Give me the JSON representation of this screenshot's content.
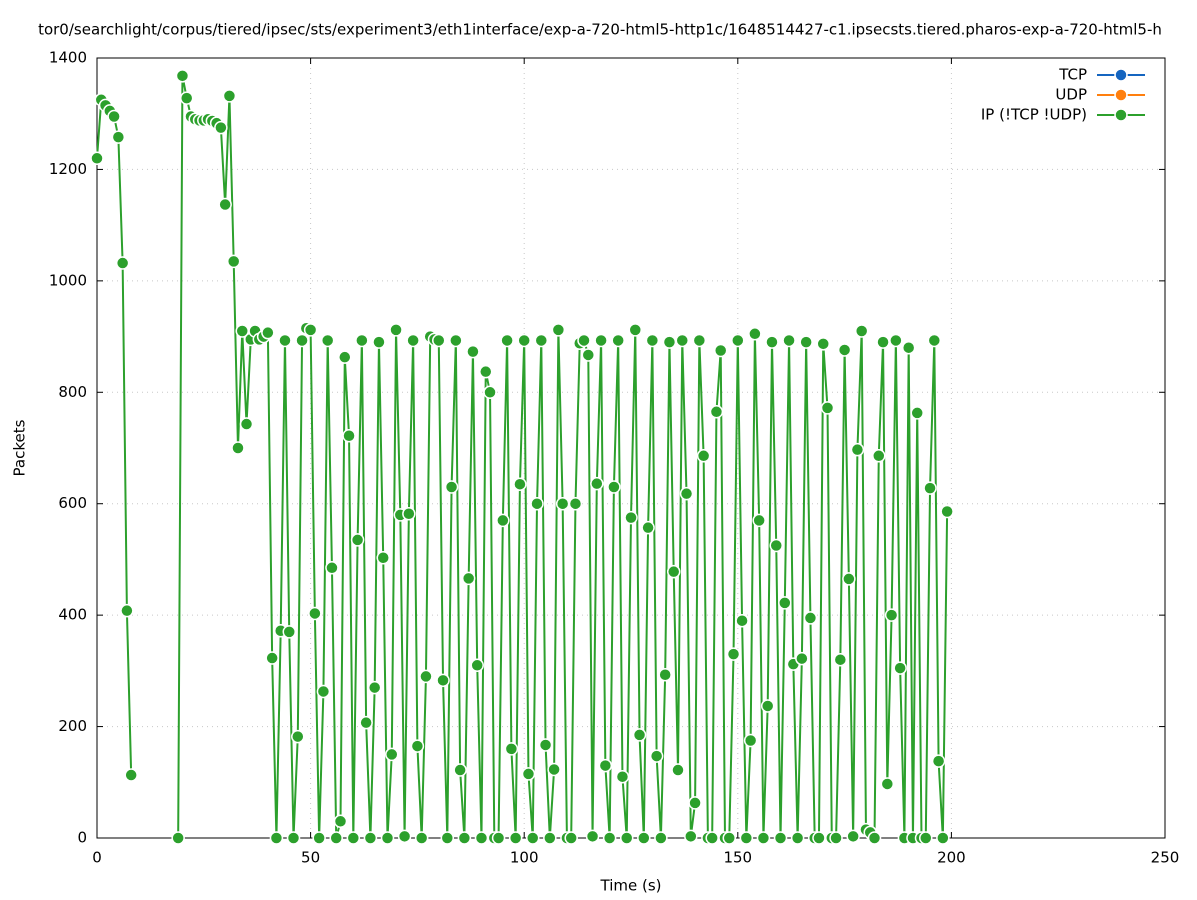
{
  "chart_data": {
    "type": "line",
    "title": "tor0/searchlight/corpus/tiered/ipsec/sts/experiment3/eth1interface/exp-a-720-html5-http1c/1648514427-c1.ipsecsts.tiered.pharos-exp-a-720-html5-h",
    "xlabel": "Time (s)",
    "ylabel": "Packets",
    "xlim": [
      0,
      250
    ],
    "xticks": [
      0,
      50,
      100,
      150,
      200,
      250
    ],
    "ylim": [
      0,
      1400
    ],
    "yticks": [
      0,
      200,
      400,
      600,
      800,
      1000,
      1200,
      1400
    ],
    "grid": true,
    "legend": "upper right",
    "series": [
      {
        "name": "TCP",
        "color": "#1565c0",
        "x": [],
        "values": []
      },
      {
        "name": "UDP",
        "color": "#ff7f0e",
        "x": [],
        "values": []
      },
      {
        "name": "IP (!TCP  !UDP)",
        "color": "#2ca02c",
        "x": [
          0,
          1,
          2,
          3,
          4,
          5,
          6,
          7,
          8,
          9,
          10,
          11,
          12,
          13,
          14,
          15,
          16,
          17,
          18,
          19,
          20,
          21,
          22,
          23,
          24,
          25,
          26,
          27,
          28,
          29,
          30,
          31,
          32,
          33,
          34,
          35,
          36,
          37,
          38,
          39,
          40,
          41,
          42,
          43,
          44,
          45,
          46,
          47,
          48,
          49,
          50,
          51,
          52,
          53,
          54,
          55,
          56,
          57,
          58,
          59,
          60,
          61,
          62,
          63,
          64,
          65,
          66,
          67,
          68,
          69,
          70,
          71,
          72,
          73,
          74,
          75,
          76,
          77,
          78,
          79,
          80,
          81,
          82,
          83,
          84,
          85,
          86,
          87,
          88,
          89,
          90,
          91,
          92,
          93,
          94,
          95,
          96,
          97,
          98,
          99,
          100,
          101,
          102,
          103,
          104,
          105,
          106,
          107,
          108,
          109,
          110,
          111,
          112,
          113,
          114,
          115,
          116,
          117,
          118,
          119,
          120,
          121,
          122,
          123,
          124,
          125,
          126,
          127,
          128,
          129,
          130,
          131,
          132,
          133,
          134,
          135,
          136,
          137,
          138,
          139,
          140,
          141,
          142,
          143,
          144,
          145,
          146,
          147,
          148,
          149,
          150,
          151,
          152,
          153,
          154,
          155,
          156,
          157,
          158,
          159,
          160,
          161,
          162,
          163,
          164,
          165,
          166,
          167,
          168,
          169,
          170,
          171,
          172,
          173,
          174,
          175,
          176,
          177,
          178,
          179,
          180,
          181,
          182,
          183,
          184,
          185,
          186,
          187,
          188,
          189,
          190,
          191,
          192,
          193,
          194,
          195,
          196,
          197,
          198,
          199
        ],
        "values": [
          1220,
          1325,
          1315,
          1305,
          1295,
          1258,
          1032,
          408,
          113,
          null,
          null,
          null,
          null,
          null,
          null,
          null,
          null,
          null,
          null,
          0,
          1368,
          1328,
          1295,
          1290,
          1288,
          1288,
          1290,
          1287,
          1283,
          1275,
          1137,
          1332,
          1035,
          700,
          910,
          743,
          895,
          910,
          895,
          900,
          907,
          323,
          0,
          372,
          893,
          370,
          0,
          182,
          893,
          915,
          912,
          403,
          0,
          263,
          893,
          485,
          0,
          30,
          863,
          722,
          0,
          535,
          893,
          207,
          0,
          270,
          890,
          503,
          0,
          150,
          912,
          580,
          3,
          582,
          893,
          165,
          0,
          290,
          900,
          895,
          893,
          283,
          0,
          630,
          893,
          122,
          0,
          466,
          873,
          310,
          0,
          837,
          800,
          0,
          0,
          570,
          893,
          160,
          0,
          635,
          893,
          115,
          0,
          600,
          893,
          167,
          0,
          123,
          912,
          600,
          0,
          0,
          600,
          888,
          893,
          867,
          3,
          636,
          893,
          130,
          0,
          630,
          893,
          110,
          0,
          575,
          912,
          185,
          0,
          557,
          893,
          147,
          0,
          293,
          890,
          478,
          122,
          893,
          618,
          3,
          63,
          893,
          686,
          0,
          0,
          765,
          875,
          0,
          0,
          330,
          893,
          390,
          0,
          175,
          905,
          570,
          0,
          237,
          890,
          525,
          0,
          422,
          893,
          312,
          0,
          322,
          890,
          395,
          0,
          0,
          887,
          772,
          0,
          0,
          320,
          876,
          465,
          3,
          697,
          910,
          15,
          10,
          0,
          686,
          890,
          97,
          400,
          893,
          305,
          0,
          880,
          0,
          763,
          0,
          0,
          628,
          893,
          138,
          0,
          586
        ]
      }
    ]
  }
}
